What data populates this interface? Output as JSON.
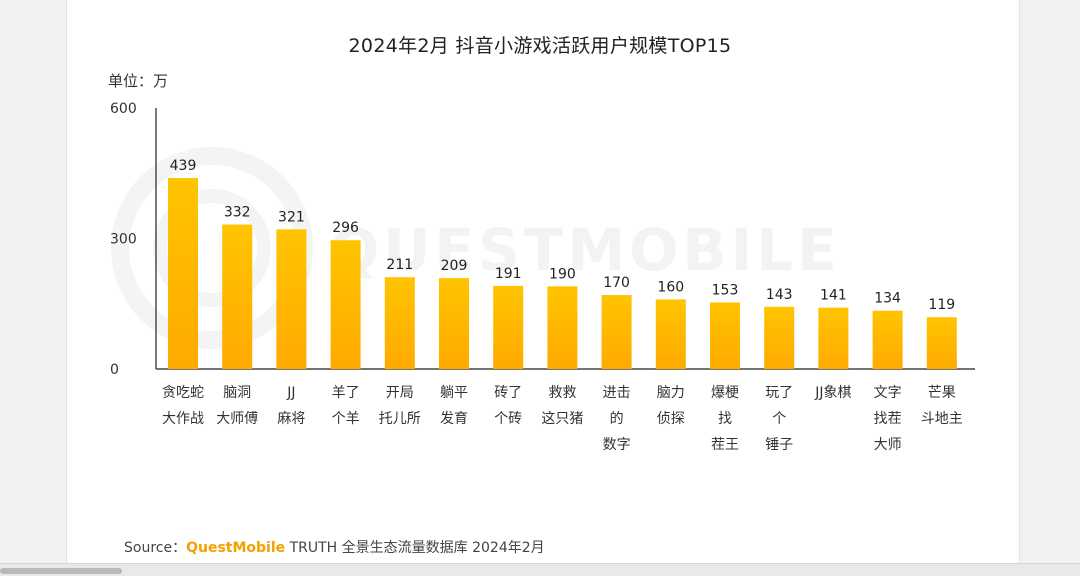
{
  "chart_data": {
    "type": "bar",
    "title": "2024年2月 抖音小游戏活跃用户规模TOP15",
    "ylabel": "单位：万",
    "ylim": [
      0,
      600
    ],
    "yticks": [
      "0",
      "300",
      "600"
    ],
    "categories": [
      [
        "贪吃蛇",
        "大作战"
      ],
      [
        "脑洞",
        "大师傅"
      ],
      [
        "JJ",
        "麻将"
      ],
      [
        "羊了",
        "个羊"
      ],
      [
        "开局",
        "托儿所"
      ],
      [
        "躺平",
        "发育"
      ],
      [
        "砖了",
        "个砖"
      ],
      [
        "救救",
        "这只猪"
      ],
      [
        "进击",
        "的",
        "数字"
      ],
      [
        "脑力",
        "侦探"
      ],
      [
        "爆梗",
        "找",
        "茬王"
      ],
      [
        "玩了",
        "个",
        "锤子"
      ],
      [
        "JJ象棋"
      ],
      [
        "文字",
        "找茬",
        "大师"
      ],
      [
        "芒果",
        "斗地主"
      ]
    ],
    "values": [
      439,
      332,
      321,
      296,
      211,
      209,
      191,
      190,
      170,
      160,
      153,
      143,
      141,
      134,
      119
    ],
    "bar_color_top": "#ffc400",
    "bar_color_bottom": "#ffaa00"
  },
  "source": {
    "prefix": "Source：",
    "brand": "QuestMobile",
    "suffix": " TRUTH 全景生态流量数据库 2024年2月"
  },
  "watermark": "QUESTMOBILE"
}
